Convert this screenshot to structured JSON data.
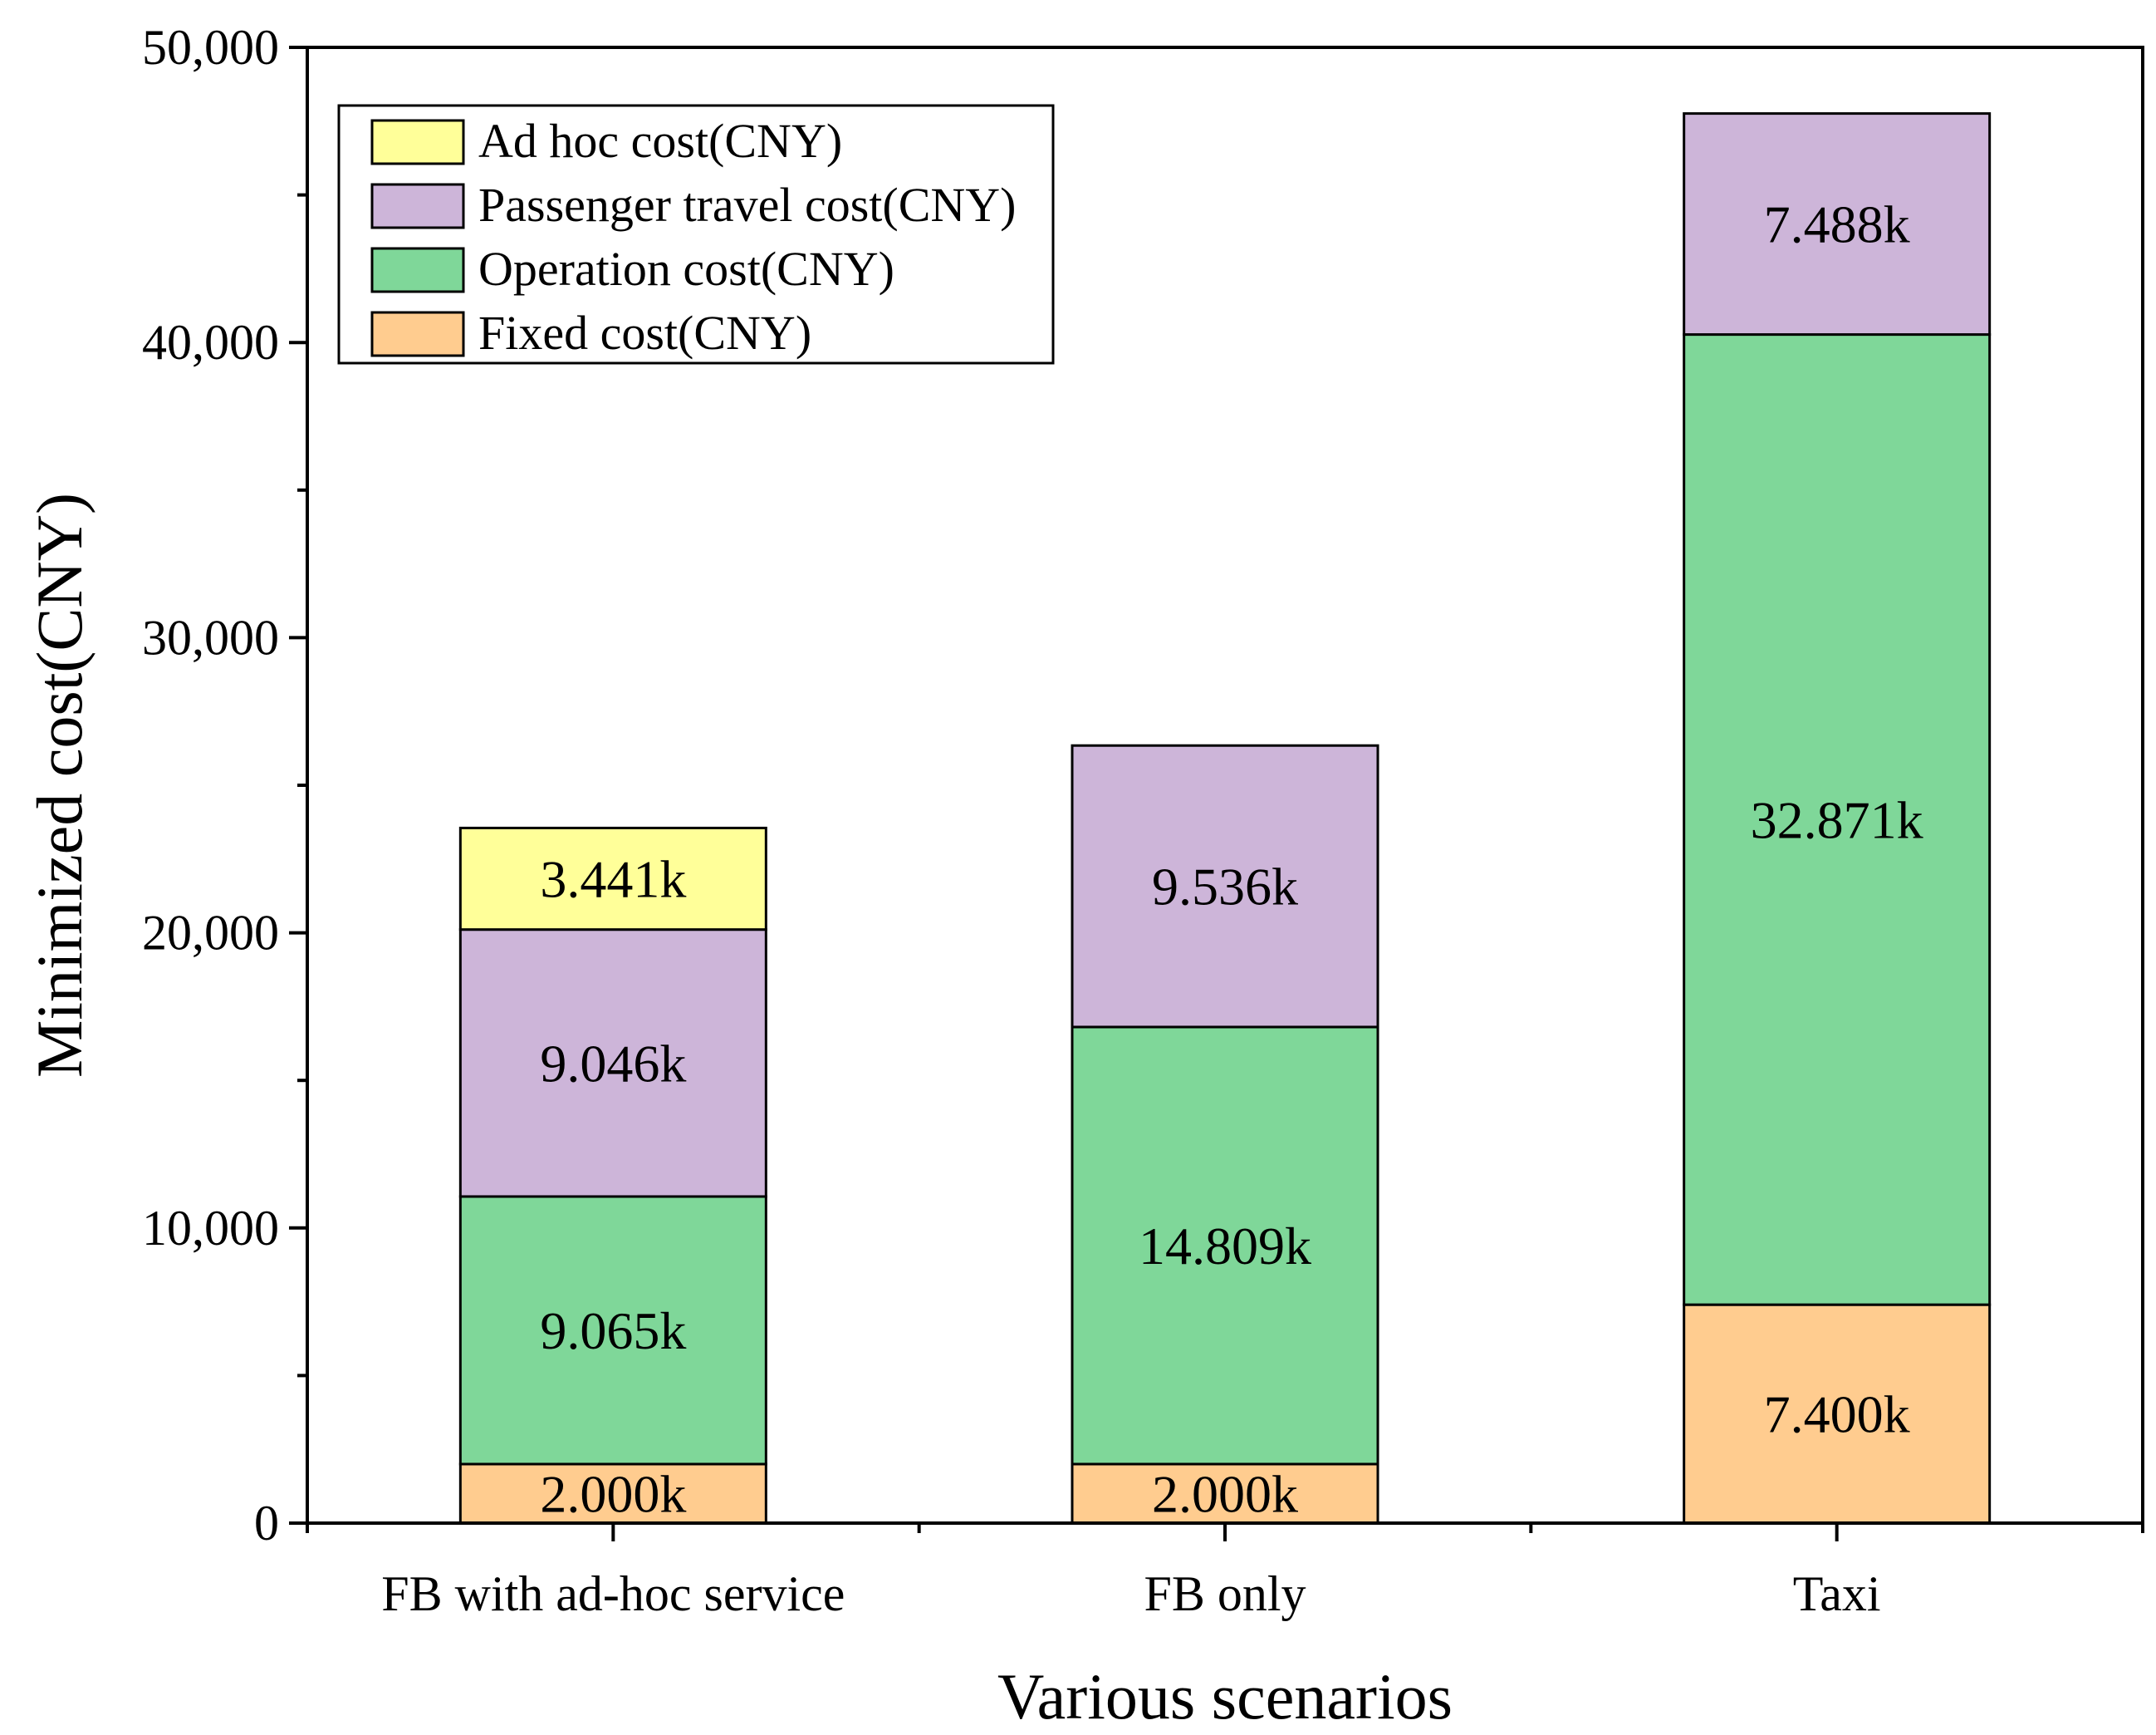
{
  "chart_data": {
    "type": "bar",
    "stacked": true,
    "title": "",
    "xlabel": "Various scenarios",
    "ylabel": "Minimized cost(CNY)",
    "ylim": [
      0,
      50000
    ],
    "y_major_ticks": [
      0,
      10000,
      20000,
      30000,
      40000,
      50000
    ],
    "y_tick_labels": [
      "0",
      "10,000",
      "20,000",
      "30,000",
      "40,000",
      "50,000"
    ],
    "y_minor_tick_step": 5000,
    "grid": false,
    "legend_position": "top-left",
    "categories": [
      "FB with ad-hoc service",
      "FB only",
      "Taxi"
    ],
    "series": [
      {
        "name": "Fixed cost(CNY)",
        "color": "#FFCC8F",
        "values": [
          2000,
          2000,
          7400
        ],
        "labels": [
          "2.000k",
          "2.000k",
          "7.400k"
        ]
      },
      {
        "name": "Operation cost(CNY)",
        "color": "#7FD799",
        "values": [
          9065,
          14809,
          32871
        ],
        "labels": [
          "9.065k",
          "14.809k",
          "32.871k"
        ]
      },
      {
        "name": "Passenger travel cost(CNY)",
        "color": "#CDB5D9",
        "values": [
          9046,
          9536,
          7488
        ],
        "labels": [
          "9.046k",
          "9.536k",
          "7.488k"
        ]
      },
      {
        "name": "Ad hoc cost(CNY)",
        "color": "#FFFF99",
        "values": [
          3441,
          0,
          0
        ],
        "labels": [
          "3.441k",
          "",
          ""
        ]
      }
    ],
    "legend_order": [
      "Ad hoc cost(CNY)",
      "Passenger travel cost(CNY)",
      "Operation cost(CNY)",
      "Fixed cost(CNY)"
    ]
  }
}
